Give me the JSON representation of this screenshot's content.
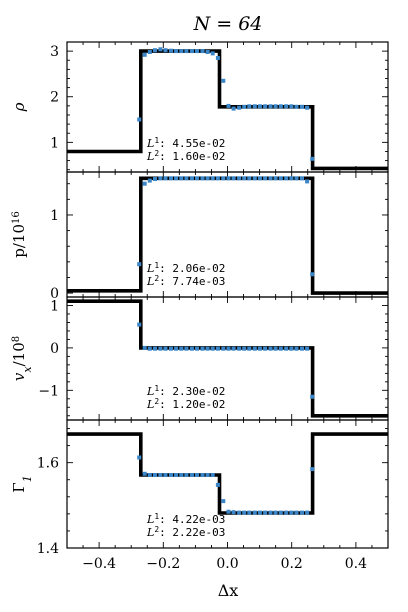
{
  "figure": {
    "title": "N = 64",
    "xlabel": "Δx",
    "x_tick_labels": [
      "−0.4",
      "−0.2",
      "0.0",
      "0.2",
      "0.4"
    ]
  },
  "chart_data": [
    {
      "type": "line",
      "ylabel": "ρ",
      "xlim": [
        -0.5,
        0.5
      ],
      "ylim": [
        0.35,
        3.2
      ],
      "yticks": [
        1,
        2,
        3
      ],
      "ytick_labels": [
        "1",
        "2",
        "3"
      ],
      "errors": {
        "L1": "4.55e-02",
        "L2": "1.60e-02"
      },
      "series": [
        {
          "kind": "line",
          "x": [
            -0.5,
            -0.27,
            -0.27,
            -0.025,
            -0.025,
            0.265,
            0.265,
            0.5
          ],
          "y": [
            0.8,
            0.8,
            3.0,
            3.0,
            1.78,
            1.78,
            0.43,
            0.43
          ]
        },
        {
          "kind": "scatter",
          "x": [
            -0.275,
            -0.258,
            -0.242,
            -0.226,
            -0.209,
            -0.193,
            -0.176,
            -0.16,
            -0.144,
            -0.128,
            -0.111,
            -0.095,
            -0.078,
            -0.062,
            -0.046,
            -0.03,
            -0.013,
            0.003,
            0.019,
            0.036,
            0.052,
            0.068,
            0.085,
            0.101,
            0.117,
            0.134,
            0.15,
            0.166,
            0.183,
            0.199,
            0.215,
            0.232,
            0.248,
            0.264
          ],
          "y": [
            1.5,
            2.92,
            2.98,
            3.02,
            3.04,
            3.02,
            3.01,
            3.0,
            3.0,
            3.0,
            3.0,
            3.0,
            3.0,
            2.98,
            2.95,
            2.85,
            2.35,
            1.8,
            1.74,
            1.76,
            1.78,
            1.79,
            1.79,
            1.79,
            1.79,
            1.79,
            1.79,
            1.79,
            1.79,
            1.79,
            1.78,
            1.78,
            1.76,
            0.64
          ]
        }
      ]
    },
    {
      "type": "line",
      "ylabel": "p/10^16",
      "xlim": [
        -0.5,
        0.5
      ],
      "ylim": [
        -0.05,
        1.55
      ],
      "yticks": [
        0,
        1
      ],
      "ytick_labels": [
        "0",
        "1"
      ],
      "errors": {
        "L1": "2.06e-02",
        "L2": "7.74e-03"
      },
      "series": [
        {
          "kind": "line",
          "x": [
            -0.5,
            -0.27,
            -0.27,
            0.265,
            0.265,
            0.5
          ],
          "y": [
            0.03,
            0.03,
            1.47,
            1.47,
            0.0,
            0.0
          ]
        },
        {
          "kind": "scatter",
          "x": [
            -0.275,
            -0.258,
            -0.242,
            -0.226,
            -0.209,
            -0.193,
            -0.176,
            -0.16,
            -0.144,
            -0.128,
            -0.111,
            -0.095,
            -0.078,
            -0.062,
            -0.046,
            -0.03,
            -0.013,
            0.003,
            0.019,
            0.036,
            0.052,
            0.068,
            0.085,
            0.101,
            0.117,
            0.134,
            0.15,
            0.166,
            0.183,
            0.199,
            0.215,
            0.232,
            0.248,
            0.264
          ],
          "y": [
            0.37,
            1.4,
            1.44,
            1.46,
            1.47,
            1.47,
            1.47,
            1.47,
            1.47,
            1.47,
            1.47,
            1.47,
            1.47,
            1.47,
            1.47,
            1.47,
            1.47,
            1.47,
            1.47,
            1.47,
            1.47,
            1.47,
            1.47,
            1.47,
            1.47,
            1.47,
            1.47,
            1.47,
            1.47,
            1.47,
            1.47,
            1.47,
            1.43,
            0.24
          ]
        }
      ]
    },
    {
      "type": "line",
      "ylabel": "v_x/10^8",
      "xlim": [
        -0.5,
        0.5
      ],
      "ylim": [
        -1.7,
        1.2
      ],
      "yticks": [
        -1,
        0,
        1
      ],
      "ytick_labels": [
        "−1",
        "0",
        "1"
      ],
      "errors": {
        "L1": "2.30e-02",
        "L2": "1.20e-02"
      },
      "series": [
        {
          "kind": "line",
          "x": [
            -0.5,
            -0.27,
            -0.27,
            0.265,
            0.265,
            0.5
          ],
          "y": [
            1.1,
            1.1,
            0.0,
            0.0,
            -1.6,
            -1.6
          ]
        },
        {
          "kind": "scatter",
          "x": [
            -0.275,
            -0.258,
            -0.242,
            -0.226,
            -0.209,
            -0.193,
            -0.176,
            -0.16,
            -0.144,
            -0.128,
            -0.111,
            -0.095,
            -0.078,
            -0.062,
            -0.046,
            -0.03,
            -0.013,
            0.003,
            0.019,
            0.036,
            0.052,
            0.068,
            0.085,
            0.101,
            0.117,
            0.134,
            0.15,
            0.166,
            0.183,
            0.199,
            0.215,
            0.232,
            0.248,
            0.264
          ],
          "y": [
            0.55,
            0.0,
            -0.02,
            -0.02,
            -0.02,
            -0.02,
            -0.02,
            -0.02,
            -0.02,
            -0.02,
            -0.02,
            -0.02,
            -0.02,
            -0.02,
            -0.02,
            -0.02,
            -0.02,
            -0.02,
            -0.02,
            -0.02,
            -0.02,
            -0.02,
            -0.02,
            -0.02,
            -0.02,
            -0.02,
            -0.02,
            -0.02,
            -0.02,
            -0.02,
            -0.02,
            -0.02,
            -0.02,
            -1.15
          ]
        }
      ]
    },
    {
      "type": "line",
      "ylabel": "Γ_1",
      "xlim": [
        -0.5,
        0.5
      ],
      "ylim": [
        1.4,
        1.7
      ],
      "yticks": [
        1.4,
        1.6
      ],
      "ytick_labels": [
        "1.4",
        "1.6"
      ],
      "errors": {
        "L1": "4.22e-03",
        "L2": "2.22e-03"
      },
      "series": [
        {
          "kind": "line",
          "x": [
            -0.5,
            -0.27,
            -0.27,
            -0.025,
            -0.025,
            0.265,
            0.265,
            0.5
          ],
          "y": [
            1.667,
            1.667,
            1.571,
            1.571,
            1.482,
            1.482,
            1.667,
            1.667
          ]
        },
        {
          "kind": "scatter",
          "x": [
            -0.275,
            -0.258,
            -0.242,
            -0.226,
            -0.209,
            -0.193,
            -0.176,
            -0.16,
            -0.144,
            -0.128,
            -0.111,
            -0.095,
            -0.078,
            -0.062,
            -0.046,
            -0.03,
            -0.013,
            0.003,
            0.019,
            0.036,
            0.052,
            0.068,
            0.085,
            0.101,
            0.117,
            0.134,
            0.15,
            0.166,
            0.183,
            0.199,
            0.215,
            0.232,
            0.248,
            0.264
          ],
          "y": [
            1.612,
            1.574,
            1.571,
            1.571,
            1.571,
            1.571,
            1.571,
            1.571,
            1.571,
            1.571,
            1.571,
            1.571,
            1.571,
            1.571,
            1.571,
            1.548,
            1.51,
            1.485,
            1.484,
            1.483,
            1.483,
            1.483,
            1.483,
            1.483,
            1.483,
            1.483,
            1.483,
            1.483,
            1.483,
            1.483,
            1.483,
            1.483,
            1.483,
            1.585
          ]
        }
      ]
    }
  ],
  "colors": {
    "line": "#000000",
    "points": "#3a86c8"
  }
}
